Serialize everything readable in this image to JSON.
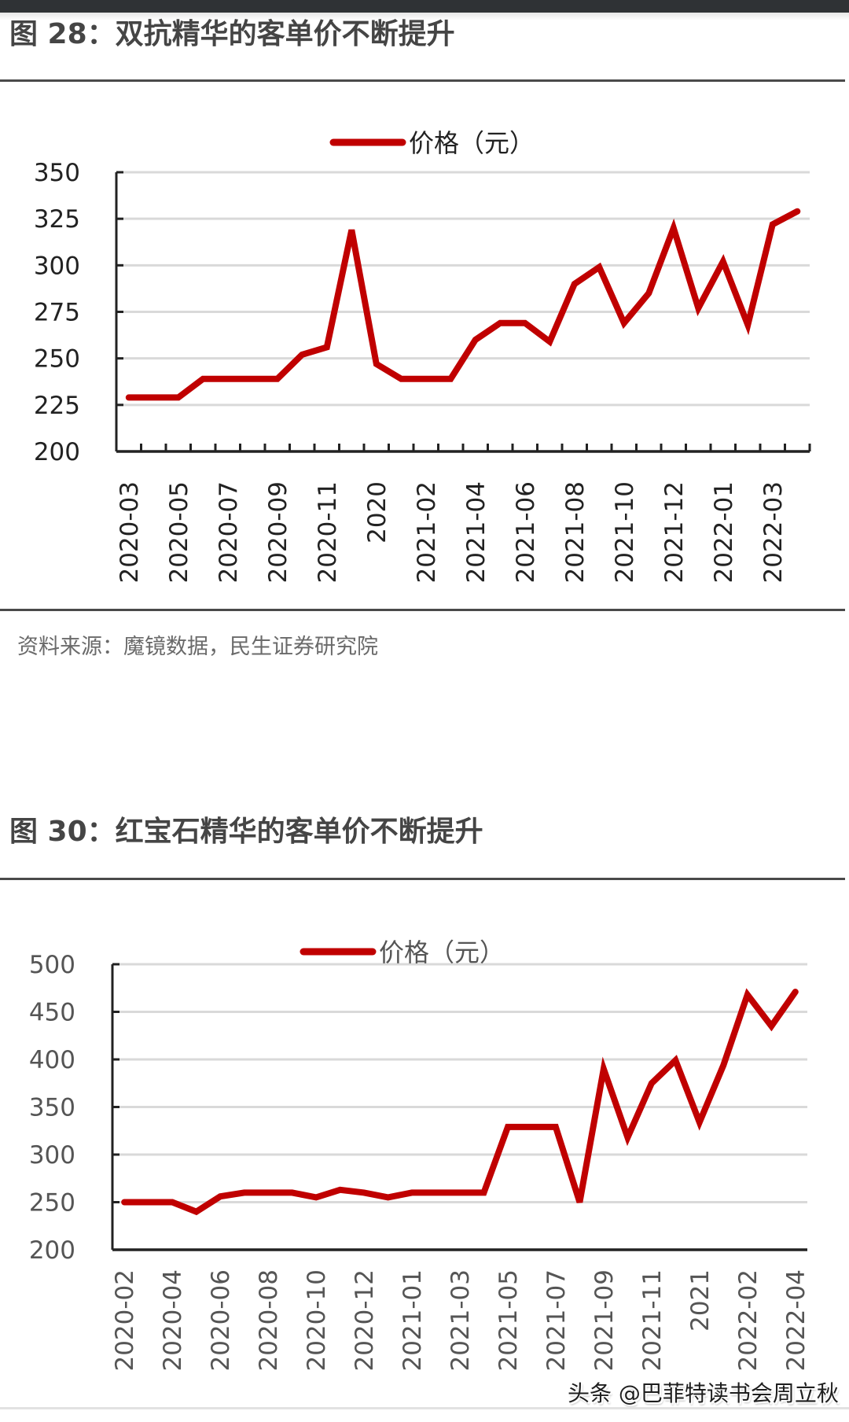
{
  "page": {
    "figure1": {
      "title": "图 28：双抗精华的客单价不断提升",
      "source": "资料来源：魔镜数据，民生证券研究院"
    },
    "figure2": {
      "title": "图 30：红宝石精华的客单价不断提升"
    },
    "watermark": "头条 @巴菲特读书会周立秋"
  },
  "colors": {
    "line": "#c00000",
    "grid": "#d9d9d9",
    "axis": "#222222",
    "rule": "#4a4a4a"
  },
  "chart_data": [
    {
      "type": "line",
      "title": "图 28：双抗精华的客单价不断提升",
      "xlabel": "",
      "ylabel": "",
      "legend": [
        "价格（元）"
      ],
      "legend_position": "top",
      "grid": true,
      "ylim": [
        200,
        350
      ],
      "yticks": [
        200,
        225,
        250,
        275,
        300,
        325,
        350
      ],
      "categories": [
        "2020-03",
        "2020-04",
        "2020-05",
        "2020-06",
        "2020-07",
        "2020-08",
        "2020-09",
        "2020-10",
        "2020-11",
        "2020-12",
        "2020",
        "2021-01",
        "2021-02",
        "2021-03",
        "2021-04",
        "2021-05",
        "2021-06",
        "2021-07",
        "2021-08",
        "2021-09",
        "2021-10",
        "2021-11",
        "2021-12",
        "2021",
        "2022-01",
        "2022-02",
        "2022-03",
        "2022-04"
      ],
      "xtick_labels_shown": [
        "2020-03",
        "2020-05",
        "2020-07",
        "2020-09",
        "2020-11",
        "2020",
        "2021-02",
        "2021-04",
        "2021-06",
        "2021-08",
        "2021-10",
        "2021-12",
        "2022-01",
        "2022-03"
      ],
      "series": [
        {
          "name": "价格（元）",
          "values": [
            229,
            229,
            229,
            239,
            239,
            239,
            239,
            252,
            256,
            319,
            247,
            239,
            239,
            239,
            260,
            269,
            269,
            259,
            290,
            299,
            269,
            285,
            320,
            277,
            302,
            268,
            322,
            329
          ]
        }
      ]
    },
    {
      "type": "line",
      "title": "图 30：红宝石精华的客单价不断提升",
      "xlabel": "",
      "ylabel": "",
      "legend": [
        "价格（元）"
      ],
      "legend_position": "top",
      "grid": true,
      "ylim": [
        200,
        500
      ],
      "yticks": [
        200,
        250,
        300,
        350,
        400,
        450,
        500
      ],
      "categories": [
        "2020-02",
        "2020-03",
        "2020-04",
        "2020-05",
        "2020-06",
        "2020-07",
        "2020-08",
        "2020-09",
        "2020-10",
        "2020-11",
        "2020-12",
        "2020",
        "2021-01",
        "2021-02",
        "2021-03",
        "2021-04",
        "2021-05",
        "2021-06",
        "2021-07",
        "2021-08",
        "2021-09",
        "2021-10",
        "2021-11",
        "2021-12",
        "2021",
        "2022-01",
        "2022-02",
        "2022-03",
        "2022-04"
      ],
      "xtick_labels_shown": [
        "2020-02",
        "2020-04",
        "2020-06",
        "2020-08",
        "2020-10",
        "2020-12",
        "2021-01",
        "2021-03",
        "2021-05",
        "2021-07",
        "2021-09",
        "2021-11",
        "2021",
        "2022-02",
        "2022-04"
      ],
      "series": [
        {
          "name": "价格（元）",
          "values": [
            250,
            250,
            250,
            240,
            256,
            260,
            260,
            260,
            255,
            263,
            260,
            255,
            260,
            260,
            260,
            260,
            329,
            329,
            329,
            250,
            390,
            318,
            375,
            399,
            334,
            394,
            468,
            435,
            471
          ]
        }
      ]
    }
  ]
}
